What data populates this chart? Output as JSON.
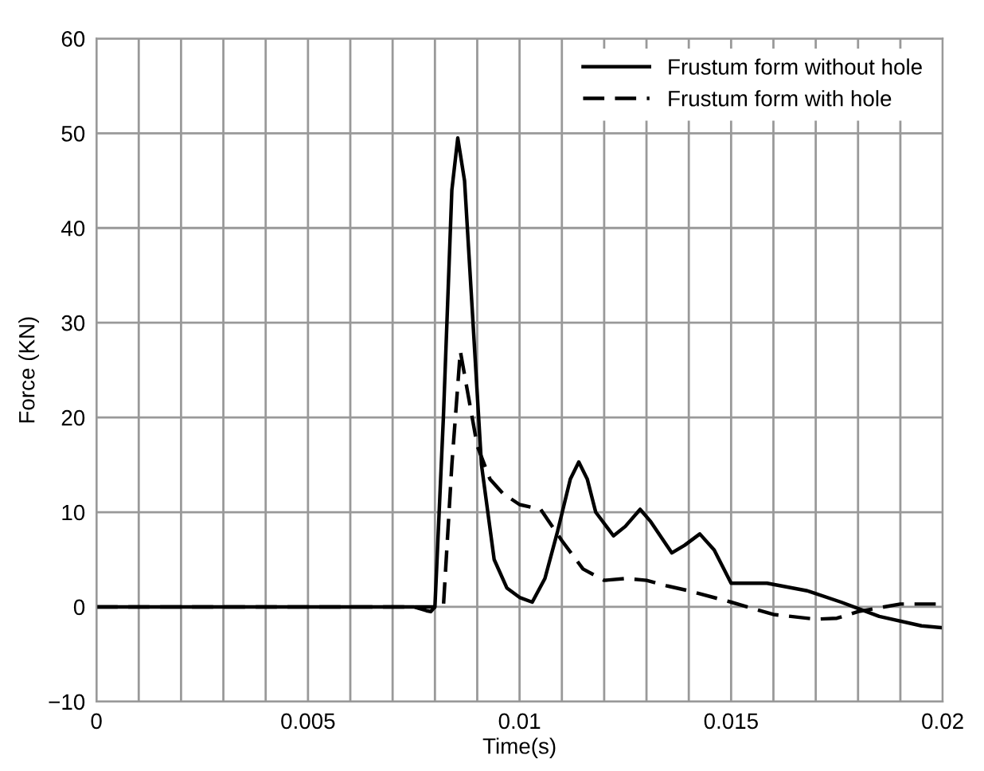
{
  "chart_data": {
    "type": "line",
    "xlabel": "Time(s)",
    "ylabel": "Force (KN)",
    "xlim": [
      0,
      0.02
    ],
    "ylim": [
      -10,
      60
    ],
    "xticks": [
      0,
      {
        "value": 0.001,
        "label": null
      },
      {
        "value": 0.002,
        "label": null
      },
      {
        "value": 0.003,
        "label": null
      },
      {
        "value": 0.004,
        "label": null
      },
      0.005,
      {
        "value": 0.006,
        "label": null
      },
      {
        "value": 0.007,
        "label": null
      },
      {
        "value": 0.008,
        "label": null
      },
      {
        "value": 0.009,
        "label": null
      },
      0.01,
      {
        "value": 0.011,
        "label": null
      },
      {
        "value": 0.012,
        "label": null
      },
      {
        "value": 0.013,
        "label": null
      },
      {
        "value": 0.014,
        "label": null
      },
      0.015,
      {
        "value": 0.016,
        "label": null
      },
      {
        "value": 0.017,
        "label": null
      },
      {
        "value": 0.018,
        "label": null
      },
      {
        "value": 0.019,
        "label": null
      },
      0.02
    ],
    "yticks": [
      {
        "value": -10,
        "label": "−10"
      },
      0,
      10,
      20,
      30,
      40,
      50,
      60
    ],
    "grid": true,
    "legend": "top right",
    "series": [
      {
        "name": "Frustum form without hole",
        "color": "#000000",
        "line_style": "solid",
        "x": [
          0,
          0.0075,
          0.0078,
          0.0079,
          0.008,
          0.0082,
          0.0084,
          0.00854,
          0.0087,
          0.0089,
          0.0091,
          0.0094,
          0.0097,
          0.01,
          0.0103,
          0.0106,
          0.0109,
          0.0112,
          0.0114,
          0.0116,
          0.0118,
          0.01222,
          0.0125,
          0.01285,
          0.0131,
          0.0136,
          0.0139,
          0.01426,
          0.0146,
          0.015,
          0.01585,
          0.0168,
          0.0176,
          0.0185,
          0.0195,
          0.02
        ],
        "values": [
          0,
          0,
          -0.4,
          -0.5,
          0,
          20,
          44,
          49.5,
          45,
          30,
          15,
          5,
          2,
          1,
          0.5,
          3,
          8,
          13.5,
          15.3,
          13.5,
          10,
          7.5,
          8.5,
          10.3,
          9,
          5.7,
          6.5,
          7.7,
          6,
          2.5,
          2.5,
          1.7,
          0.5,
          -1,
          -2,
          -2.2
        ]
      },
      {
        "name": "Frustum form with hole",
        "color": "#000000",
        "line_style": "dashed",
        "x": [
          0,
          0.0082,
          0.0084,
          0.0086,
          0.0088,
          0.009,
          0.0093,
          0.0096,
          0.01,
          0.0105,
          0.011,
          0.0115,
          0.012,
          0.0125,
          0.013,
          0.0135,
          0.014,
          0.015,
          0.016,
          0.017,
          0.0175,
          0.018,
          0.019,
          0.02
        ],
        "values": [
          0,
          0,
          15,
          27,
          22,
          17,
          13.5,
          12,
          10.8,
          10.3,
          7,
          4,
          2.8,
          3,
          2.8,
          2.2,
          1.7,
          0.5,
          -0.8,
          -1.3,
          -1.2,
          -0.5,
          0.3,
          0.3
        ]
      }
    ]
  }
}
